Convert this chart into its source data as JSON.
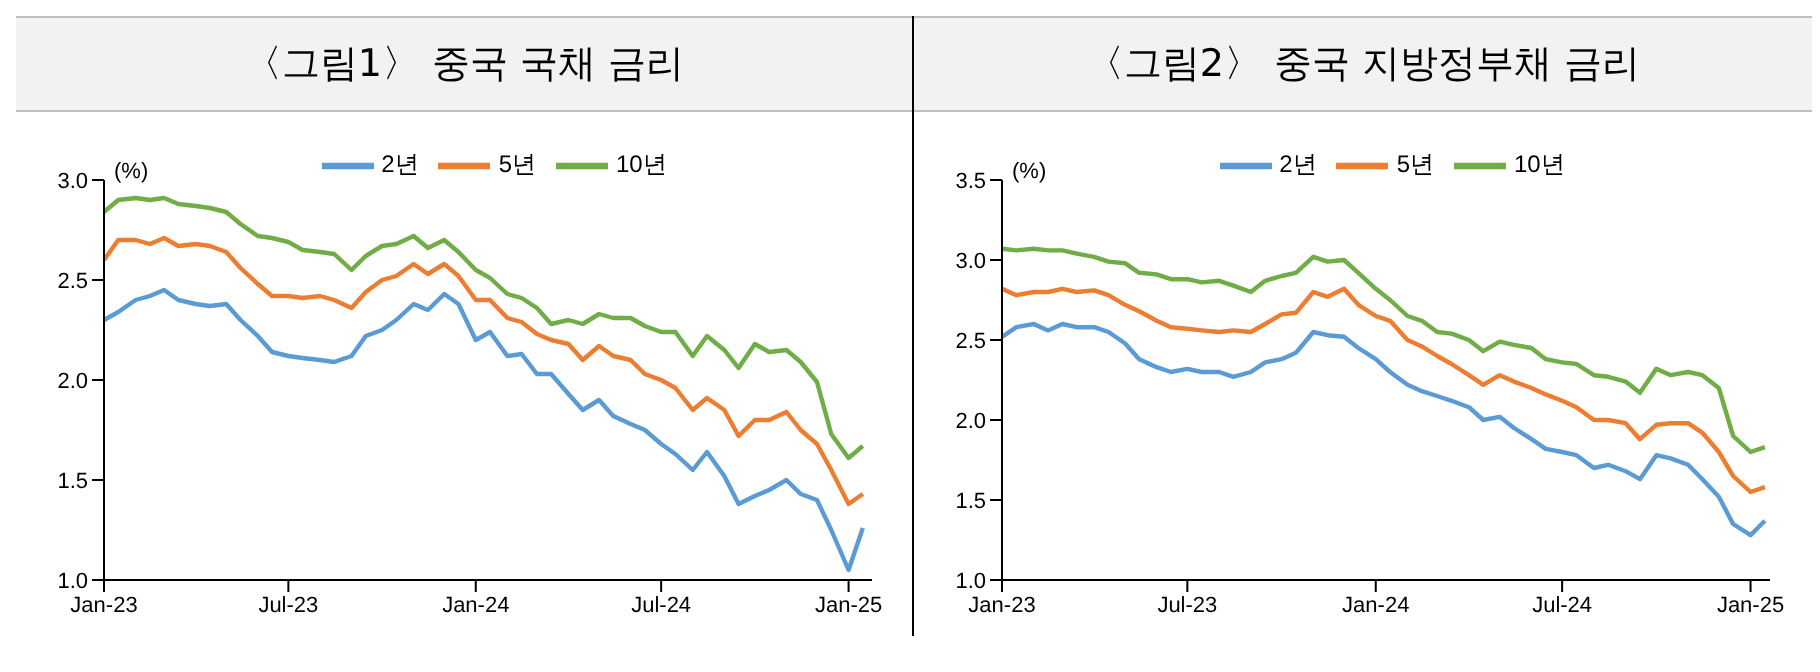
{
  "chart_data": [
    {
      "type": "line",
      "title": "〈그림1〉 중국 국채 금리",
      "ylabel": "(%)",
      "legend": "top",
      "grid": false,
      "marker": "none",
      "x": [
        "2023-01-01",
        "2023-01-15",
        "2023-02-01",
        "2023-02-15",
        "2023-03-01",
        "2023-03-15",
        "2023-04-01",
        "2023-04-15",
        "2023-05-01",
        "2023-05-15",
        "2023-06-01",
        "2023-06-15",
        "2023-07-01",
        "2023-07-15",
        "2023-08-01",
        "2023-08-15",
        "2023-09-01",
        "2023-09-15",
        "2023-10-01",
        "2023-10-15",
        "2023-11-01",
        "2023-11-15",
        "2023-12-01",
        "2023-12-15",
        "2024-01-01",
        "2024-01-15",
        "2024-02-01",
        "2024-02-15",
        "2024-03-01",
        "2024-03-15",
        "2024-04-01",
        "2024-04-15",
        "2024-05-01",
        "2024-05-15",
        "2024-06-01",
        "2024-06-15",
        "2024-07-01",
        "2024-07-15",
        "2024-08-01",
        "2024-08-15",
        "2024-09-01",
        "2024-09-15",
        "2024-10-01",
        "2024-10-15",
        "2024-11-01",
        "2024-11-15",
        "2024-12-01",
        "2024-12-15",
        "2025-01-01",
        "2025-01-15"
      ],
      "series": [
        {
          "name": "2년",
          "color": "#5b9bd5",
          "values": [
            2.3,
            2.34,
            2.4,
            2.42,
            2.45,
            2.4,
            2.38,
            2.37,
            2.38,
            2.3,
            2.22,
            2.14,
            2.12,
            2.11,
            2.1,
            2.09,
            2.12,
            2.22,
            2.25,
            2.3,
            2.38,
            2.35,
            2.43,
            2.38,
            2.2,
            2.24,
            2.12,
            2.13,
            2.03,
            2.03,
            1.93,
            1.85,
            1.9,
            1.82,
            1.78,
            1.75,
            1.68,
            1.63,
            1.55,
            1.64,
            1.52,
            1.38,
            1.42,
            1.45,
            1.5,
            1.43,
            1.4,
            1.25,
            1.05,
            1.26
          ]
        },
        {
          "name": "5년",
          "color": "#ed7d31",
          "values": [
            2.6,
            2.7,
            2.7,
            2.68,
            2.71,
            2.67,
            2.68,
            2.67,
            2.64,
            2.56,
            2.48,
            2.42,
            2.42,
            2.41,
            2.42,
            2.4,
            2.36,
            2.44,
            2.5,
            2.52,
            2.58,
            2.53,
            2.58,
            2.52,
            2.4,
            2.4,
            2.31,
            2.29,
            2.23,
            2.2,
            2.18,
            2.1,
            2.17,
            2.12,
            2.1,
            2.03,
            2.0,
            1.96,
            1.85,
            1.91,
            1.85,
            1.72,
            1.8,
            1.8,
            1.84,
            1.75,
            1.68,
            1.55,
            1.38,
            1.43
          ]
        },
        {
          "name": "10년",
          "color": "#70ad47",
          "values": [
            2.84,
            2.9,
            2.91,
            2.9,
            2.91,
            2.88,
            2.87,
            2.86,
            2.84,
            2.78,
            2.72,
            2.71,
            2.69,
            2.65,
            2.64,
            2.63,
            2.55,
            2.62,
            2.67,
            2.68,
            2.72,
            2.66,
            2.7,
            2.64,
            2.55,
            2.51,
            2.43,
            2.41,
            2.36,
            2.28,
            2.3,
            2.28,
            2.33,
            2.31,
            2.31,
            2.27,
            2.24,
            2.24,
            2.12,
            2.22,
            2.15,
            2.06,
            2.18,
            2.14,
            2.15,
            2.09,
            1.99,
            1.73,
            1.61,
            1.67
          ]
        }
      ],
      "xlim": [
        "2023-01-01",
        "2025-01-24"
      ],
      "xticks": [
        {
          "value": "2023-01-01",
          "label": "Jan-23"
        },
        {
          "value": "2023-07-01",
          "label": "Jul-23"
        },
        {
          "value": "2024-01-01",
          "label": "Jan-24"
        },
        {
          "value": "2024-07-01",
          "label": "Jul-24"
        },
        {
          "value": "2025-01-01",
          "label": "Jan-25"
        }
      ],
      "ylim": [
        1,
        3
      ],
      "yticks": [
        {
          "value": 1,
          "label": "1.0"
        },
        {
          "value": 1.5,
          "label": "1.5"
        },
        {
          "value": 2,
          "label": "2.0"
        },
        {
          "value": 2.5,
          "label": "2.5"
        },
        {
          "value": 3,
          "label": "3.0"
        }
      ]
    },
    {
      "type": "line",
      "title": "〈그림2〉 중국 지방정부채 금리",
      "ylabel": "(%)",
      "legend": "top",
      "grid": false,
      "marker": "none",
      "x": [
        "2023-01-01",
        "2023-01-15",
        "2023-02-01",
        "2023-02-15",
        "2023-03-01",
        "2023-03-15",
        "2023-04-01",
        "2023-04-15",
        "2023-05-01",
        "2023-05-15",
        "2023-06-01",
        "2023-06-15",
        "2023-07-01",
        "2023-07-15",
        "2023-08-01",
        "2023-08-15",
        "2023-09-01",
        "2023-09-15",
        "2023-10-01",
        "2023-10-15",
        "2023-11-01",
        "2023-11-15",
        "2023-12-01",
        "2023-12-15",
        "2024-01-01",
        "2024-01-15",
        "2024-02-01",
        "2024-02-15",
        "2024-03-01",
        "2024-03-15",
        "2024-04-01",
        "2024-04-15",
        "2024-05-01",
        "2024-05-15",
        "2024-06-01",
        "2024-06-15",
        "2024-07-01",
        "2024-07-15",
        "2024-08-01",
        "2024-08-15",
        "2024-09-01",
        "2024-09-15",
        "2024-10-01",
        "2024-10-15",
        "2024-11-01",
        "2024-11-15",
        "2024-12-01",
        "2024-12-15",
        "2025-01-01",
        "2025-01-15"
      ],
      "series": [
        {
          "name": "2년",
          "color": "#5b9bd5",
          "values": [
            2.52,
            2.58,
            2.6,
            2.56,
            2.6,
            2.58,
            2.58,
            2.55,
            2.48,
            2.38,
            2.33,
            2.3,
            2.32,
            2.3,
            2.3,
            2.27,
            2.3,
            2.36,
            2.38,
            2.42,
            2.55,
            2.53,
            2.52,
            2.45,
            2.38,
            2.3,
            2.22,
            2.18,
            2.15,
            2.12,
            2.08,
            2.0,
            2.02,
            1.95,
            1.88,
            1.82,
            1.8,
            1.78,
            1.7,
            1.72,
            1.68,
            1.63,
            1.78,
            1.76,
            1.72,
            1.63,
            1.52,
            1.35,
            1.28,
            1.37
          ]
        },
        {
          "name": "5년",
          "color": "#ed7d31",
          "values": [
            2.82,
            2.78,
            2.8,
            2.8,
            2.82,
            2.8,
            2.81,
            2.78,
            2.72,
            2.68,
            2.62,
            2.58,
            2.57,
            2.56,
            2.55,
            2.56,
            2.55,
            2.6,
            2.66,
            2.67,
            2.8,
            2.77,
            2.82,
            2.72,
            2.65,
            2.62,
            2.5,
            2.46,
            2.4,
            2.35,
            2.28,
            2.22,
            2.28,
            2.24,
            2.2,
            2.16,
            2.12,
            2.08,
            2.0,
            2.0,
            1.98,
            1.88,
            1.97,
            1.98,
            1.98,
            1.92,
            1.8,
            1.65,
            1.55,
            1.58
          ]
        },
        {
          "name": "10년",
          "color": "#70ad47",
          "values": [
            3.07,
            3.06,
            3.07,
            3.06,
            3.06,
            3.04,
            3.02,
            2.99,
            2.98,
            2.92,
            2.91,
            2.88,
            2.88,
            2.86,
            2.87,
            2.84,
            2.8,
            2.87,
            2.9,
            2.92,
            3.02,
            2.99,
            3.0,
            2.92,
            2.82,
            2.75,
            2.65,
            2.62,
            2.55,
            2.54,
            2.5,
            2.43,
            2.49,
            2.47,
            2.45,
            2.38,
            2.36,
            2.35,
            2.28,
            2.27,
            2.24,
            2.17,
            2.32,
            2.28,
            2.3,
            2.28,
            2.2,
            1.9,
            1.8,
            1.83
          ]
        }
      ],
      "xlim": [
        "2023-01-01",
        "2025-01-20"
      ],
      "xticks": [
        {
          "value": "2023-01-01",
          "label": "Jan-23"
        },
        {
          "value": "2023-07-01",
          "label": "Jul-23"
        },
        {
          "value": "2024-01-01",
          "label": "Jan-24"
        },
        {
          "value": "2024-07-01",
          "label": "Jul-24"
        },
        {
          "value": "2025-01-01",
          "label": "Jan-25"
        }
      ],
      "ylim": [
        1,
        3.5
      ],
      "yticks": [
        {
          "value": 1,
          "label": "1.0"
        },
        {
          "value": 1.5,
          "label": "1.5"
        },
        {
          "value": 2,
          "label": "2.0"
        },
        {
          "value": 2.5,
          "label": "2.5"
        },
        {
          "value": 3,
          "label": "3.0"
        },
        {
          "value": 3.5,
          "label": "3.5"
        }
      ]
    }
  ]
}
